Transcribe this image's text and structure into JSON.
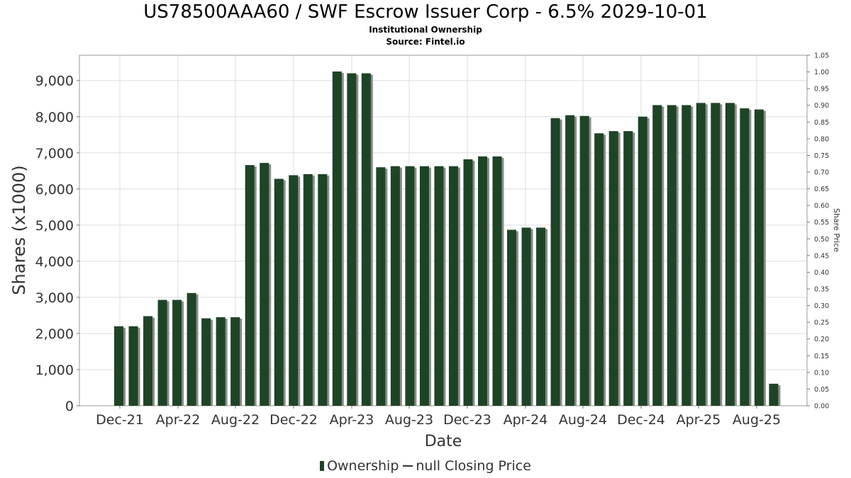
{
  "title": "US78500AAA60 / SWF Escrow Issuer Corp - 6.5% 2029-10-01",
  "subtitle1": "Institutional Ownership",
  "subtitle2": "Source: Fintel.io",
  "legend": {
    "ownership": "Ownership",
    "price": "null Closing Price"
  },
  "colors": {
    "bar": "#1e4426",
    "bar_shadow": "#8c8c8c",
    "grid": "#dddddd",
    "frame": "#999999"
  },
  "chart_data": {
    "type": "bar",
    "xlabel": "Date",
    "ylabel": "Shares (x1000)",
    "y2label": "Share Price",
    "ylim": [
      0,
      9700
    ],
    "y2lim": [
      0,
      1.05
    ],
    "y_ticks": [
      "0",
      "1,000",
      "2,000",
      "3,000",
      "4,000",
      "5,000",
      "6,000",
      "7,000",
      "8,000",
      "9,000"
    ],
    "y2_ticks": [
      "0.00",
      "0.05",
      "0.10",
      "0.15",
      "0.20",
      "0.25",
      "0.30",
      "0.35",
      "0.40",
      "0.45",
      "0.50",
      "0.55",
      "0.60",
      "0.65",
      "0.70",
      "0.75",
      "0.80",
      "0.85",
      "0.90",
      "0.95",
      "1.00",
      "1.05"
    ],
    "x_ticks": [
      "Dec-21",
      "Apr-22",
      "Aug-22",
      "Dec-22",
      "Apr-23",
      "Aug-23",
      "Dec-23",
      "Apr-24",
      "Aug-24",
      "Dec-24",
      "Apr-25",
      "Aug-25"
    ],
    "grid": true,
    "legend_position": "bottom",
    "series": [
      {
        "name": "Ownership",
        "values": [
          2200,
          2200,
          2480,
          2930,
          2930,
          3120,
          2420,
          2450,
          2450,
          6660,
          6720,
          6280,
          6380,
          6410,
          6410,
          9250,
          9200,
          9200,
          6600,
          6630,
          6630,
          6630,
          6630,
          6630,
          6820,
          6900,
          6900,
          4870,
          4930,
          4930,
          7960,
          8040,
          8020,
          7540,
          7600,
          7600,
          8000,
          8320,
          8320,
          8320,
          8380,
          8380,
          8380,
          8230,
          8200,
          610
        ]
      }
    ]
  }
}
